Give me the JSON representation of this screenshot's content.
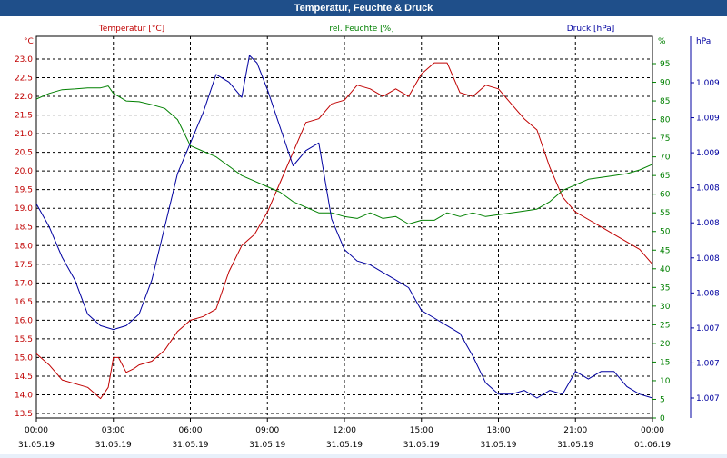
{
  "window": {
    "title": "Temperatur, Feuchte & Druck"
  },
  "chart_data": {
    "type": "line",
    "title": "Temperatur, Feuchte & Druck",
    "grid": true,
    "x_ticks": [
      {
        "time": "00:00",
        "date": "31.05.19"
      },
      {
        "time": "03:00",
        "date": "31.05.19"
      },
      {
        "time": "06:00",
        "date": "31.05.19"
      },
      {
        "time": "09:00",
        "date": "31.05.19"
      },
      {
        "time": "12:00",
        "date": "31.05.19"
      },
      {
        "time": "15:00",
        "date": "31.05.19"
      },
      {
        "time": "18:00",
        "date": "31.05.19"
      },
      {
        "time": "21:00",
        "date": "31.05.19"
      },
      {
        "time": "00:00",
        "date": "01.06.19"
      }
    ],
    "axes": {
      "temperature": {
        "label": "Temperatur [°C]",
        "unit": "°C",
        "color": "#c00000",
        "range": [
          13.5,
          23.0
        ],
        "ticks": [
          "13.5",
          "14.0",
          "14.5",
          "15.0",
          "15.5",
          "16.0",
          "16.5",
          "17.0",
          "17.5",
          "18.0",
          "18.5",
          "19.0",
          "19.5",
          "20.0",
          "20.5",
          "21.0",
          "21.5",
          "22.0",
          "22.5",
          "23.0"
        ]
      },
      "humidity": {
        "label": "rel. Feuchte [%]",
        "unit": "%",
        "color": "#008000",
        "range": [
          0,
          95
        ],
        "ticks": [
          "0",
          "5",
          "10",
          "15",
          "20",
          "25",
          "30",
          "35",
          "40",
          "45",
          "50",
          "55",
          "60",
          "65",
          "70",
          "75",
          "80",
          "85",
          "90",
          "95"
        ]
      },
      "pressure": {
        "label": "Druck [hPa]",
        "unit": "hPa",
        "color": "#0000a0",
        "ticks": [
          "1.007",
          "1.007",
          "1.007",
          "1.008",
          "1.008",
          "1.008",
          "1.008",
          "1.009",
          "1.009",
          "1.009"
        ]
      }
    },
    "series": [
      {
        "name": "Temperatur [°C]",
        "color": "#c00000",
        "axis": "temperature",
        "x_hours": [
          0,
          0.5,
          1,
          1.5,
          2,
          2.5,
          2.8,
          3,
          3.2,
          3.5,
          3.8,
          4,
          4.5,
          5,
          5.5,
          6,
          6.5,
          7,
          7.5,
          8,
          8.5,
          9,
          9.5,
          10,
          10.5,
          11,
          11.5,
          12,
          12.5,
          13,
          13.5,
          14,
          14.5,
          15,
          15.5,
          16,
          16.5,
          17,
          17.5,
          18,
          18.5,
          19,
          19.5,
          20,
          20.5,
          21,
          21.5,
          22,
          22.5,
          23,
          23.5,
          24
        ],
        "values": [
          15.1,
          14.8,
          14.4,
          14.3,
          14.2,
          13.9,
          14.2,
          15.0,
          15.0,
          14.6,
          14.7,
          14.8,
          14.9,
          15.2,
          15.7,
          16.0,
          16.1,
          16.3,
          17.3,
          18.0,
          18.3,
          18.9,
          19.7,
          20.5,
          21.3,
          21.4,
          21.8,
          21.9,
          22.3,
          22.2,
          22.0,
          22.2,
          22.0,
          22.6,
          22.9,
          22.9,
          22.1,
          22.0,
          22.3,
          22.2,
          21.8,
          21.4,
          21.1,
          20.1,
          19.3,
          18.9,
          18.7,
          18.5,
          18.3,
          18.1,
          17.9,
          17.5
        ]
      },
      {
        "name": "rel. Feuchte [%]",
        "color": "#008000",
        "axis": "humidity",
        "x_hours": [
          0,
          0.5,
          1,
          1.5,
          2,
          2.5,
          2.8,
          3,
          3.5,
          4,
          4.5,
          5,
          5.5,
          6,
          6.5,
          7,
          7.5,
          8,
          8.5,
          9,
          9.5,
          10,
          10.5,
          11,
          11.5,
          12,
          12.5,
          13,
          13.5,
          14,
          14.5,
          15,
          15.5,
          16,
          16.5,
          17,
          17.5,
          18,
          18.5,
          19,
          19.5,
          20,
          20.5,
          21,
          21.5,
          22,
          22.5,
          23,
          23.5,
          24
        ],
        "values": [
          85.5,
          87,
          88,
          88.2,
          88.5,
          88.5,
          89,
          87,
          85,
          84.8,
          84,
          83,
          80,
          73,
          71.5,
          70,
          67.5,
          65,
          63.5,
          62,
          60.5,
          58,
          56.5,
          55,
          55,
          54,
          53.5,
          55,
          53.5,
          54,
          52,
          53,
          53,
          55,
          54,
          55,
          54,
          54.5,
          55,
          55.5,
          56,
          58,
          61,
          62.5,
          64,
          64.5,
          65,
          65.5,
          66.5,
          68
        ]
      },
      {
        "name": "Druck [hPa]",
        "color": "#0000a0",
        "axis": "pressure",
        "x_hours": [
          0,
          0.5,
          1,
          1.5,
          2,
          2.5,
          3,
          3.5,
          4,
          4.5,
          5,
          5.5,
          6,
          6.5,
          7,
          7.5,
          8,
          8.3,
          8.6,
          9,
          9.5,
          10,
          10.5,
          11,
          11.5,
          12,
          12.5,
          13,
          13.5,
          14,
          14.5,
          15,
          15.5,
          16,
          16.5,
          17,
          17.5,
          18,
          18.5,
          19,
          19.5,
          20,
          20.5,
          21,
          21.5,
          22,
          22.5,
          23,
          23.5,
          24
        ],
        "values": [
          1008.6,
          1008.3,
          1007.9,
          1007.6,
          1007.15,
          1007.0,
          1006.95,
          1007.0,
          1007.15,
          1007.6,
          1008.3,
          1009.0,
          1009.4,
          1009.8,
          1010.3,
          1010.2,
          1010.0,
          1010.55,
          1010.45,
          1010.1,
          1009.6,
          1009.1,
          1009.3,
          1009.4,
          1008.4,
          1008.0,
          1007.85,
          1007.8,
          1007.7,
          1007.6,
          1007.5,
          1007.2,
          1007.1,
          1007.0,
          1006.9,
          1006.6,
          1006.25,
          1006.1,
          1006.1,
          1006.15,
          1006.05,
          1006.15,
          1006.1,
          1006.4,
          1006.3,
          1006.4,
          1006.4,
          1006.2,
          1006.1,
          1006.05
        ]
      }
    ]
  }
}
